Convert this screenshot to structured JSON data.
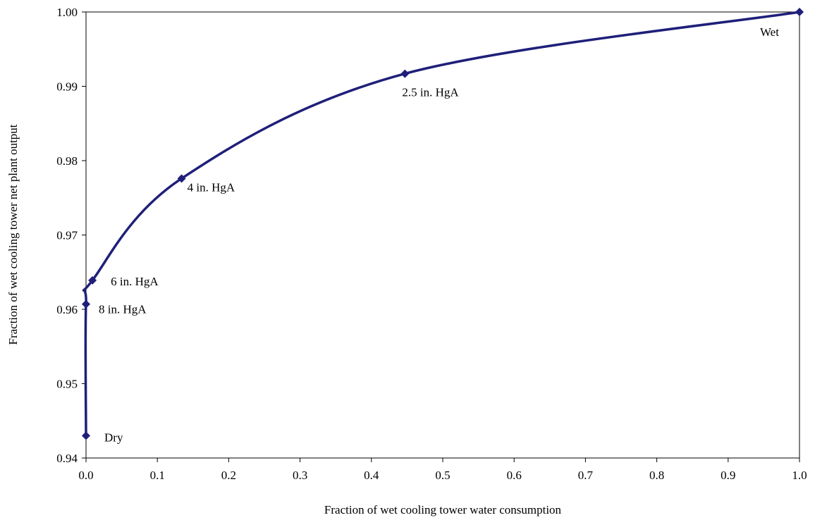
{
  "chart_data": {
    "type": "line",
    "title": "",
    "xlabel": "Fraction of wet cooling tower water consumption",
    "ylabel": "Fraction of wet cooling tower net plant output",
    "xlim": [
      0.0,
      1.0
    ],
    "ylim": [
      0.94,
      1.0
    ],
    "x_ticks": [
      "0.0",
      "0.1",
      "0.2",
      "0.3",
      "0.4",
      "0.5",
      "0.6",
      "0.7",
      "0.8",
      "0.9",
      "1.0"
    ],
    "y_ticks": [
      "0.94",
      "0.95",
      "0.96",
      "0.97",
      "0.98",
      "0.99",
      "1.00"
    ],
    "grid": false,
    "legend": false,
    "series": [
      {
        "color": "#1f1f7a",
        "marker": "diamond",
        "points": [
          {
            "x": 0.0,
            "y": 0.943,
            "label": "Dry"
          },
          {
            "x": 0.0,
            "y": 0.9607,
            "label": "8 in. HgA"
          },
          {
            "x": 0.009,
            "y": 0.9639,
            "label": "6 in. HgA"
          },
          {
            "x": 0.134,
            "y": 0.9776,
            "label": "4 in. HgA"
          },
          {
            "x": 0.447,
            "y": 0.9917,
            "label": "2.5 in. HgA"
          },
          {
            "x": 1.0,
            "y": 1.0,
            "label": "Wet"
          }
        ]
      }
    ]
  }
}
